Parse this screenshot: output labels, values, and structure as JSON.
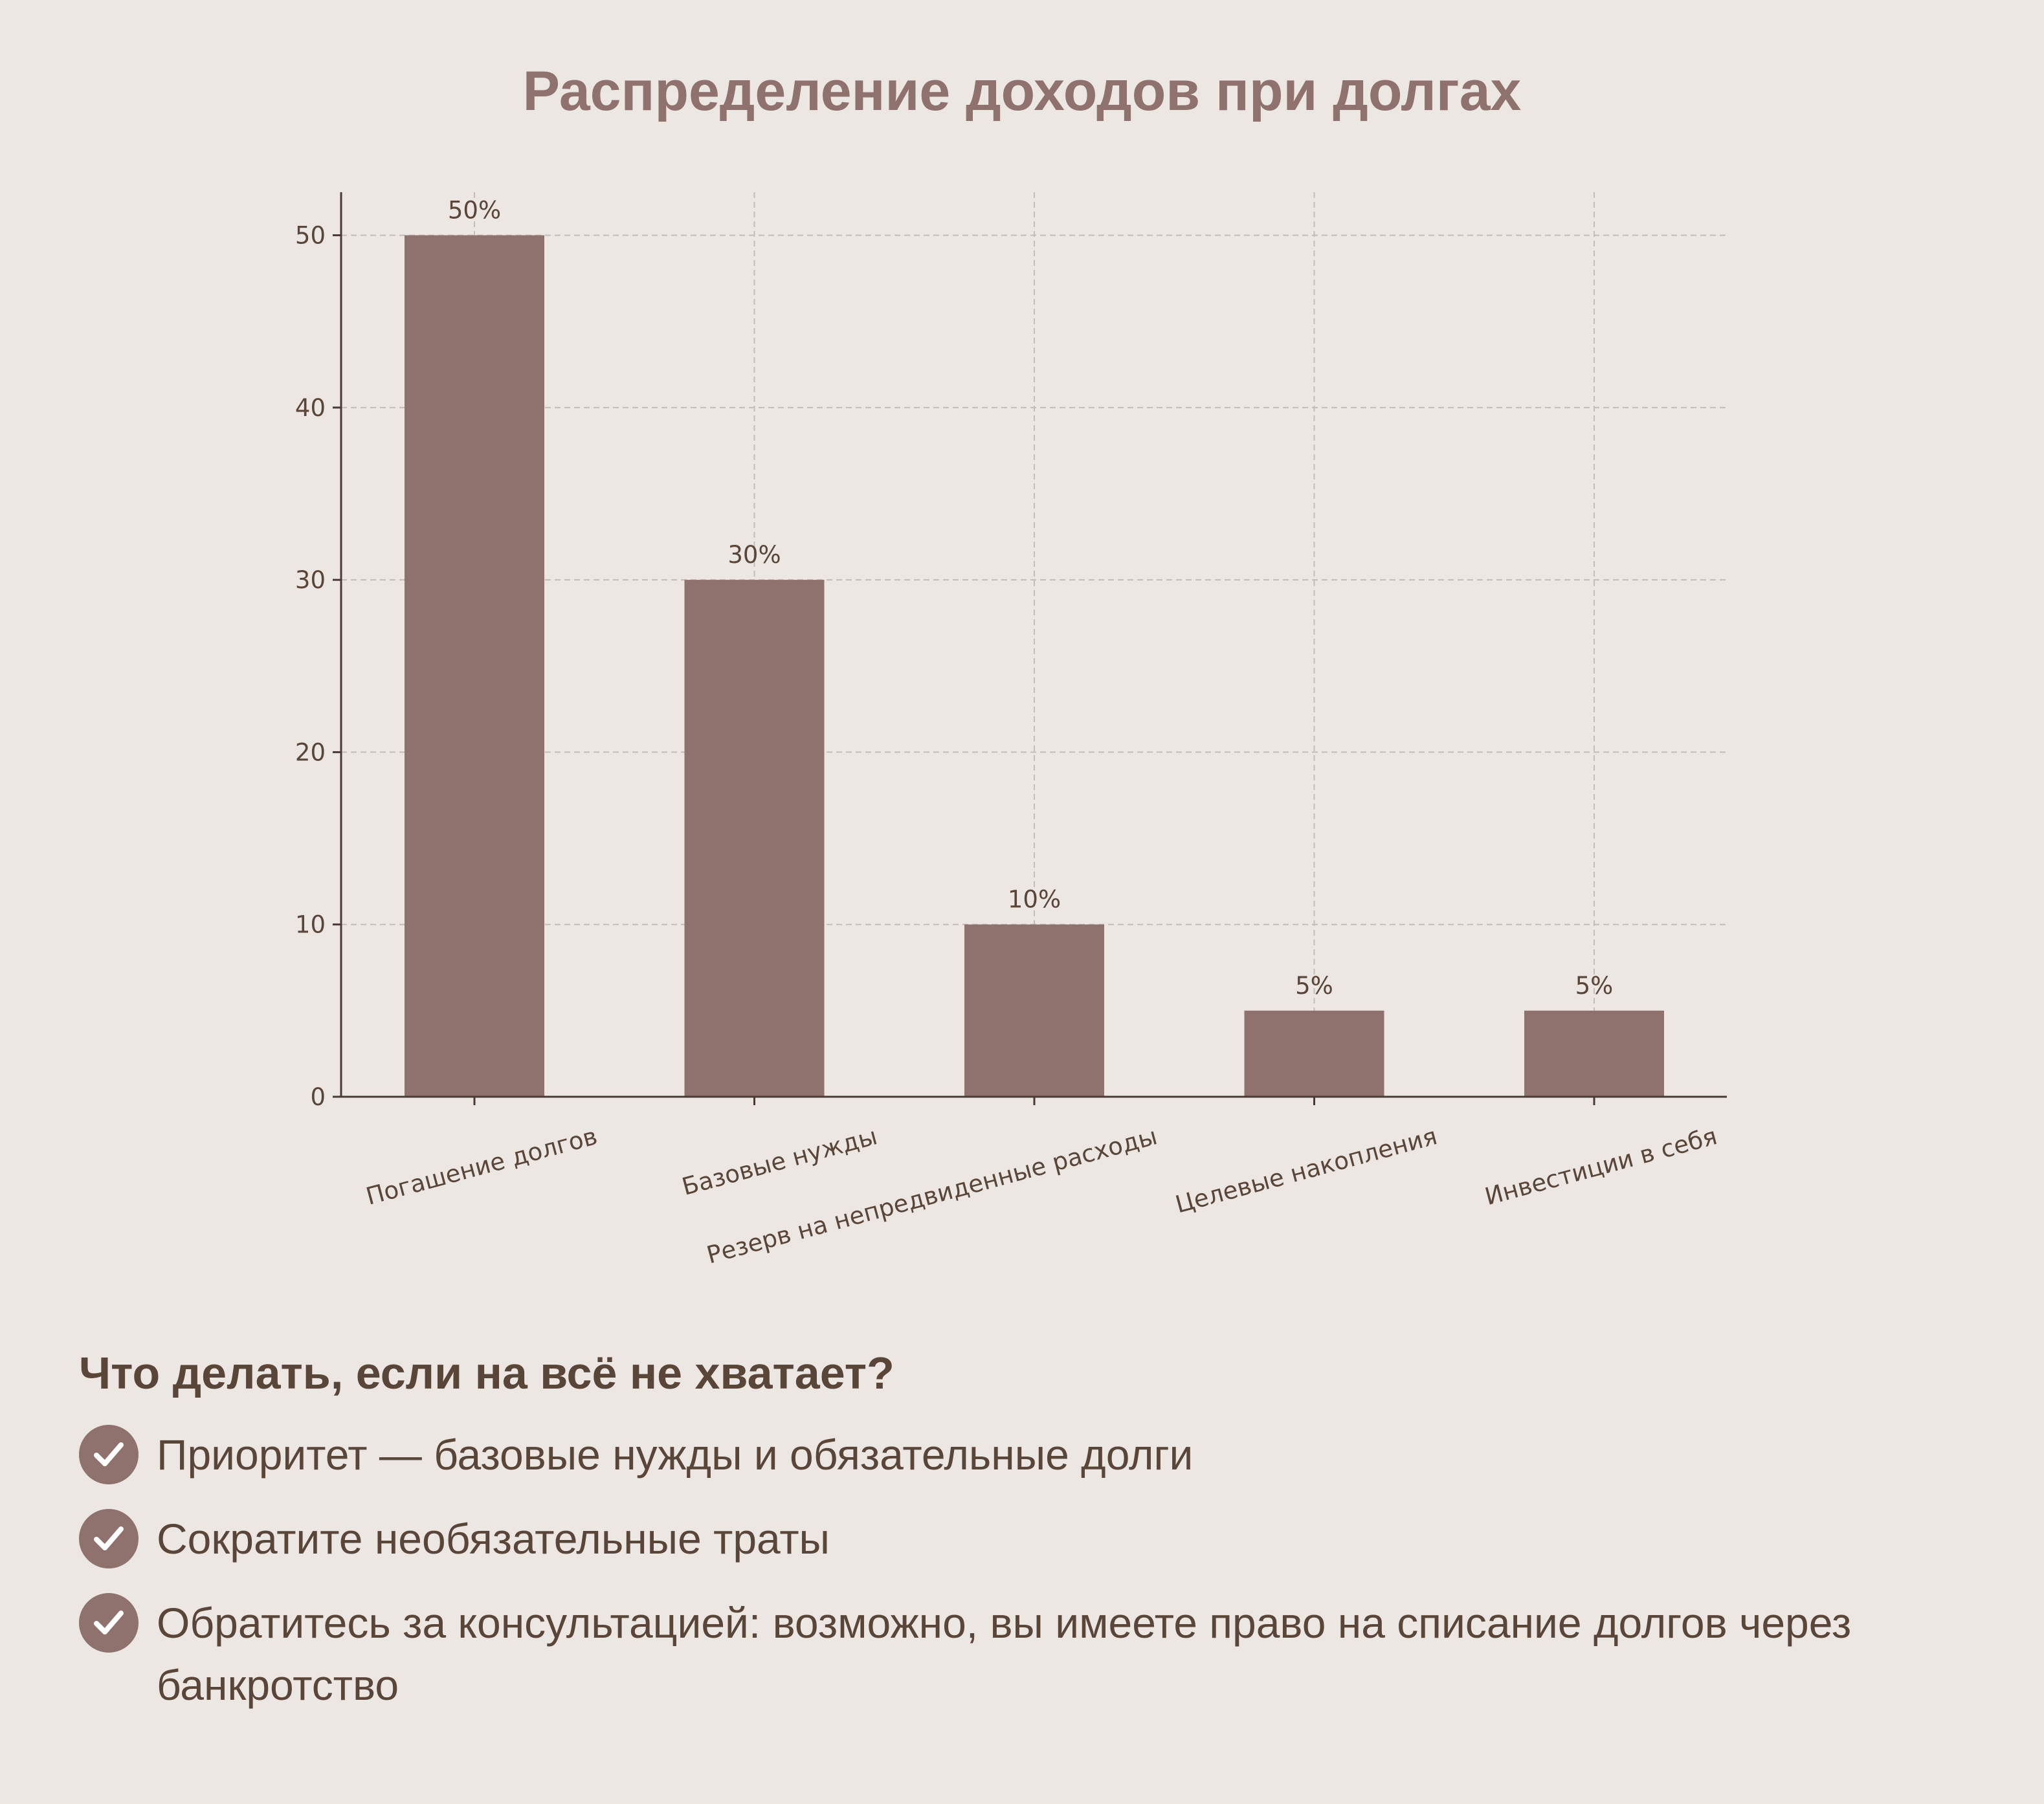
{
  "colors": {
    "background": "#ece7e2",
    "bar": "#8f716d",
    "title": "#8f716d",
    "text": "#5a4539",
    "axis": "#4a3a33",
    "grid": "#c5bcb5",
    "check_fill": "#8f716d",
    "check_mark": "#ffffff"
  },
  "chart_data": {
    "type": "bar",
    "title": "Распределение доходов при долгах",
    "xlabel": "",
    "ylabel": "",
    "categories": [
      "Погашение долгов",
      "Базовые нужды",
      "Резерв на непредвиденные расходы",
      "Целевые накопления",
      "Инвестиции в себя"
    ],
    "values": [
      50,
      30,
      10,
      5,
      5
    ],
    "data_labels": [
      "50%",
      "30%",
      "10%",
      "5%",
      "5%"
    ],
    "yticks": [
      0,
      10,
      20,
      30,
      40,
      50
    ],
    "ylim": [
      0,
      52.5
    ],
    "grid": true,
    "x_tick_label_rotation_deg": 15
  },
  "tips": {
    "title": "Что делать, если на всё не хватает?",
    "icon": "check-circle-icon",
    "items": [
      "Приоритет — базовые нужды и обязательные долги",
      "Сократите необязательные траты",
      "Обратитесь за консультацией: возможно, вы имеете право на списание долгов через банкротство"
    ]
  }
}
